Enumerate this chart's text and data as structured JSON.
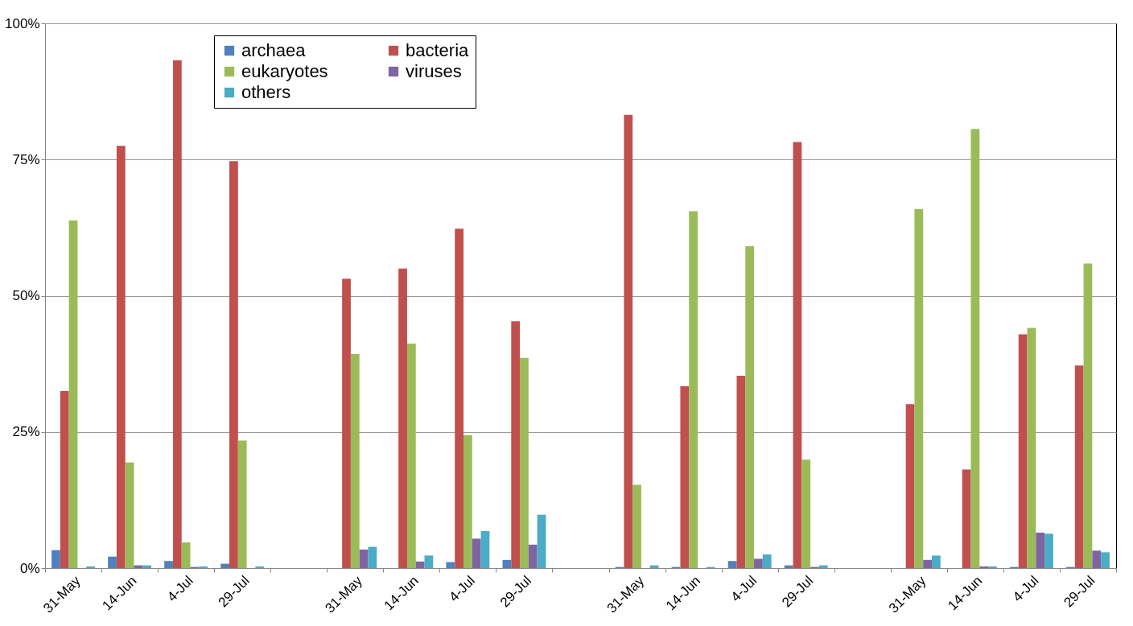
{
  "chart_data": {
    "type": "bar",
    "categories": [
      "31-May",
      "14-Jun",
      "4-Jul",
      "29-Jul",
      null,
      "31-May",
      "14-Jun",
      "4-Jul",
      "29-Jul",
      null,
      "31-May",
      "14-Jun",
      "4-Jul",
      "29-Jul",
      null,
      "31-May",
      "14-Jun",
      "4-Jul",
      "29-Jul"
    ],
    "series": [
      {
        "name": "archaea",
        "color": "#4f81bd",
        "values": [
          3.3,
          2.1,
          1.3,
          0.8,
          null,
          0,
          0,
          1.1,
          1.5,
          null,
          0.2,
          0.2,
          1.3,
          0.5,
          null,
          0,
          0,
          0.2,
          0.2
        ]
      },
      {
        "name": "bacteria",
        "color": "#c0504d",
        "values": [
          32.5,
          77.5,
          93.2,
          74.7,
          null,
          53.1,
          55.0,
          62.3,
          45.3,
          null,
          83.2,
          33.4,
          35.3,
          78.2,
          null,
          30.1,
          18.1,
          42.9,
          37.2
        ]
      },
      {
        "name": "eukaryotes",
        "color": "#9bbb59",
        "values": [
          63.8,
          19.4,
          4.7,
          23.4,
          null,
          39.3,
          41.2,
          24.4,
          38.6,
          null,
          15.3,
          65.5,
          59.1,
          19.9,
          null,
          65.9,
          80.6,
          44.1,
          55.9
        ]
      },
      {
        "name": "viruses",
        "color": "#8064a2",
        "values": [
          null,
          0.5,
          0.2,
          null,
          null,
          3.4,
          1.2,
          5.4,
          4.3,
          null,
          0,
          0,
          1.7,
          0.2,
          null,
          1.5,
          0.3,
          6.5,
          3.2
        ]
      },
      {
        "name": "others",
        "color": "#4bacc6",
        "values": [
          0.3,
          0.5,
          0.3,
          0.3,
          null,
          3.9,
          2.3,
          6.8,
          9.8,
          null,
          0.5,
          0.2,
          2.5,
          0.5,
          null,
          2.3,
          0.3,
          6.3,
          2.9
        ]
      }
    ],
    "ylim": [
      0,
      100
    ],
    "yticks": [
      {
        "value": 0,
        "label": "0%"
      },
      {
        "value": 25,
        "label": "25%"
      },
      {
        "value": 50,
        "label": "50%"
      },
      {
        "value": 75,
        "label": "75%"
      },
      {
        "value": 100,
        "label": "100%"
      }
    ],
    "grid": "y",
    "legend": "top left"
  }
}
